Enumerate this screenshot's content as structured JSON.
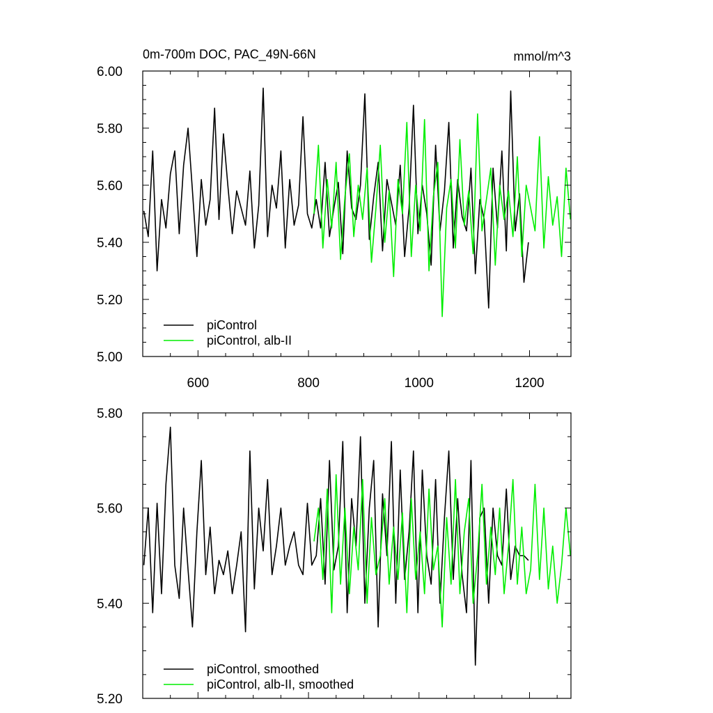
{
  "chart_data": [
    {
      "type": "line",
      "title": "0m-700m DOC, PAC_49N-66N",
      "units": "mmol/m^3",
      "xlim": [
        500,
        1275
      ],
      "ylim": [
        5.0,
        6.0
      ],
      "x_ticks": [
        600,
        800,
        1000,
        1200
      ],
      "x_tick_labels": [
        "600",
        "800",
        "1000",
        "1200"
      ],
      "y_ticks": [
        5.0,
        5.2,
        5.4,
        5.6,
        5.8,
        6.0
      ],
      "y_tick_labels": [
        "5.00",
        "5.20",
        "5.40",
        "5.60",
        "5.80",
        "6.00"
      ],
      "legend_position": "bottom-left",
      "series": [
        {
          "name": "piControl",
          "color": "#000000",
          "x": [
            502,
            510,
            518,
            526,
            534,
            542,
            550,
            558,
            566,
            574,
            582,
            590,
            598,
            606,
            614,
            622,
            630,
            638,
            646,
            654,
            662,
            670,
            678,
            686,
            694,
            702,
            710,
            718,
            726,
            734,
            742,
            750,
            758,
            766,
            774,
            782,
            790,
            798,
            806,
            814,
            822,
            830,
            838,
            846,
            854,
            862,
            870,
            878,
            886,
            894,
            902,
            910,
            918,
            926,
            934,
            942,
            950,
            958,
            966,
            974,
            982,
            990,
            998,
            1006,
            1014,
            1022,
            1030,
            1038,
            1046,
            1054,
            1062,
            1070,
            1078,
            1086,
            1094,
            1102,
            1110,
            1118,
            1126,
            1134,
            1142,
            1150,
            1158,
            1166,
            1174,
            1182,
            1190,
            1198
          ],
          "y": [
            5.51,
            5.42,
            5.72,
            5.3,
            5.55,
            5.45,
            5.64,
            5.72,
            5.43,
            5.67,
            5.8,
            5.58,
            5.35,
            5.62,
            5.46,
            5.55,
            5.87,
            5.48,
            5.78,
            5.6,
            5.43,
            5.58,
            5.52,
            5.46,
            5.65,
            5.38,
            5.53,
            5.94,
            5.42,
            5.6,
            5.52,
            5.72,
            5.38,
            5.62,
            5.46,
            5.53,
            5.84,
            5.5,
            5.45,
            5.55,
            5.45,
            5.68,
            5.42,
            5.52,
            5.61,
            5.36,
            5.72,
            5.52,
            5.48,
            5.6,
            5.92,
            5.41,
            5.56,
            5.68,
            5.37,
            5.62,
            5.54,
            5.46,
            5.67,
            5.35,
            5.52,
            5.88,
            5.43,
            5.6,
            5.5,
            5.32,
            5.74,
            5.44,
            5.58,
            5.82,
            5.38,
            5.62,
            5.49,
            5.44,
            5.66,
            5.29,
            5.55,
            5.48,
            5.17,
            5.66,
            5.45,
            5.72,
            5.37,
            5.93,
            5.44,
            5.57,
            5.26,
            5.4
          ]
        },
        {
          "name": "piControl, alb-II",
          "color": "#00ee00",
          "x": [
            810,
            818,
            826,
            834,
            842,
            850,
            858,
            866,
            874,
            882,
            890,
            898,
            906,
            914,
            922,
            930,
            938,
            946,
            954,
            962,
            970,
            978,
            986,
            994,
            1002,
            1010,
            1018,
            1026,
            1034,
            1042,
            1050,
            1058,
            1066,
            1074,
            1082,
            1090,
            1098,
            1106,
            1114,
            1122,
            1130,
            1138,
            1146,
            1154,
            1162,
            1170,
            1178,
            1186,
            1194,
            1202,
            1210,
            1218,
            1226,
            1234,
            1242,
            1250,
            1258,
            1266,
            1274
          ],
          "y": [
            5.5,
            5.74,
            5.38,
            5.62,
            5.45,
            5.68,
            5.34,
            5.56,
            5.71,
            5.42,
            5.6,
            5.48,
            5.66,
            5.33,
            5.52,
            5.74,
            5.4,
            5.58,
            5.28,
            5.62,
            5.5,
            5.82,
            5.35,
            5.6,
            5.44,
            5.83,
            5.3,
            5.56,
            5.68,
            5.14,
            5.52,
            5.62,
            5.38,
            5.76,
            5.46,
            5.58,
            5.36,
            5.85,
            5.44,
            5.55,
            5.66,
            5.32,
            5.6,
            5.48,
            5.58,
            5.42,
            5.7,
            5.35,
            5.6,
            5.52,
            5.44,
            5.77,
            5.38,
            5.63,
            5.46,
            5.56,
            5.35,
            5.66,
            5.48
          ]
        }
      ]
    },
    {
      "type": "line",
      "xlim": [
        500,
        1275
      ],
      "ylim": [
        5.2,
        5.8
      ],
      "y_ticks": [
        5.2,
        5.4,
        5.6,
        5.8
      ],
      "y_tick_labels": [
        "5.20",
        "5.40",
        "5.60",
        "5.80"
      ],
      "legend_position": "bottom-left",
      "series": [
        {
          "name": "piControl, smoothed",
          "color": "#000000",
          "x": [
            502,
            510,
            518,
            526,
            534,
            542,
            550,
            558,
            566,
            574,
            582,
            590,
            598,
            606,
            614,
            622,
            630,
            638,
            646,
            654,
            662,
            670,
            678,
            686,
            694,
            702,
            710,
            718,
            726,
            734,
            742,
            750,
            758,
            766,
            774,
            782,
            790,
            798,
            806,
            814,
            822,
            830,
            838,
            846,
            854,
            862,
            870,
            878,
            886,
            894,
            902,
            910,
            918,
            926,
            934,
            942,
            950,
            958,
            966,
            974,
            982,
            990,
            998,
            1006,
            1014,
            1022,
            1030,
            1038,
            1046,
            1054,
            1062,
            1070,
            1078,
            1086,
            1094,
            1102,
            1110,
            1118,
            1126,
            1134,
            1142,
            1150,
            1158,
            1166,
            1174,
            1182,
            1190,
            1198
          ],
          "y": [
            5.48,
            5.6,
            5.38,
            5.61,
            5.42,
            5.65,
            5.77,
            5.48,
            5.41,
            5.6,
            5.47,
            5.35,
            5.55,
            5.7,
            5.46,
            5.56,
            5.42,
            5.49,
            5.46,
            5.51,
            5.42,
            5.48,
            5.55,
            5.34,
            5.72,
            5.43,
            5.6,
            5.51,
            5.66,
            5.46,
            5.52,
            5.6,
            5.48,
            5.52,
            5.55,
            5.48,
            5.46,
            5.61,
            5.48,
            5.5,
            5.62,
            5.44,
            5.7,
            5.47,
            5.52,
            5.74,
            5.38,
            5.62,
            5.52,
            5.75,
            5.4,
            5.6,
            5.7,
            5.35,
            5.63,
            5.5,
            5.74,
            5.4,
            5.68,
            5.45,
            5.55,
            5.72,
            5.38,
            5.68,
            5.5,
            5.44,
            5.66,
            5.4,
            5.58,
            5.72,
            5.45,
            5.62,
            5.46,
            5.38,
            5.7,
            5.27,
            5.58,
            5.6,
            5.4,
            5.6,
            5.5,
            5.48,
            5.64,
            5.45,
            5.52,
            5.5,
            5.5,
            5.49
          ]
        },
        {
          "name": "piControl, alb-II, smoothed",
          "color": "#00ee00",
          "x": [
            810,
            818,
            826,
            834,
            842,
            850,
            858,
            866,
            874,
            882,
            890,
            898,
            906,
            914,
            922,
            930,
            938,
            946,
            954,
            962,
            970,
            978,
            986,
            994,
            1002,
            1010,
            1018,
            1026,
            1034,
            1042,
            1050,
            1058,
            1066,
            1074,
            1082,
            1090,
            1098,
            1106,
            1114,
            1122,
            1130,
            1138,
            1146,
            1154,
            1162,
            1170,
            1178,
            1186,
            1194,
            1202,
            1210,
            1218,
            1226,
            1234,
            1242,
            1250,
            1258,
            1266,
            1274
          ],
          "y": [
            5.53,
            5.6,
            5.45,
            5.64,
            5.38,
            5.67,
            5.44,
            5.6,
            5.42,
            5.56,
            5.47,
            5.66,
            5.4,
            5.58,
            5.46,
            5.5,
            5.62,
            5.44,
            5.56,
            5.45,
            5.59,
            5.38,
            5.62,
            5.45,
            5.55,
            5.42,
            5.64,
            5.47,
            5.52,
            5.35,
            5.58,
            5.44,
            5.66,
            5.42,
            5.55,
            5.62,
            5.4,
            5.5,
            5.65,
            5.44,
            5.56,
            5.46,
            5.6,
            5.42,
            5.52,
            5.66,
            5.44,
            5.56,
            5.42,
            5.47,
            5.65,
            5.45,
            5.6,
            5.43,
            5.52,
            5.4,
            5.48,
            5.6,
            5.5
          ]
        }
      ]
    }
  ]
}
